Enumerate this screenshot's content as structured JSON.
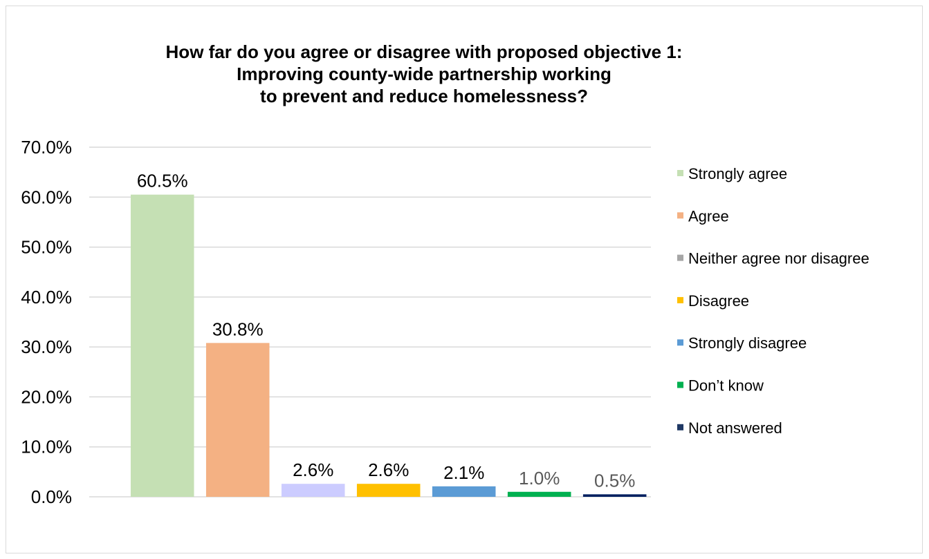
{
  "chart_data": {
    "type": "bar",
    "title_lines": [
      "How far do you agree or disagree with proposed objective 1:",
      "Improving county-wide partnership working",
      "to prevent and reduce homelessness?"
    ],
    "xlabel": "",
    "ylabel": "",
    "ylim": [
      0,
      70
    ],
    "yticks": [
      "0.0%",
      "10.0%",
      "20.0%",
      "30.0%",
      "40.0%",
      "50.0%",
      "60.0%",
      "70.0%"
    ],
    "grid": true,
    "legend_position": "right",
    "series": [
      {
        "name": "Strongly agree",
        "value": 60.5,
        "label": "60.5%",
        "color": "#c5e0b4",
        "legend_color": "#c5e0b4",
        "label_color": "#000000"
      },
      {
        "name": "Agree",
        "value": 30.8,
        "label": "30.8%",
        "color": "#f4b183",
        "legend_color": "#f4b183",
        "label_color": "#000000"
      },
      {
        "name": "Neither agree nor disagree",
        "value": 2.6,
        "label": "2.6%",
        "color": "#ccccff",
        "legend_color": "#a6a6a6",
        "label_color": "#000000"
      },
      {
        "name": "Disagree",
        "value": 2.6,
        "label": "2.6%",
        "color": "#ffc000",
        "legend_color": "#ffc000",
        "label_color": "#000000"
      },
      {
        "name": "Strongly disagree",
        "value": 2.1,
        "label": "2.1%",
        "color": "#5b9bd5",
        "legend_color": "#5b9bd5",
        "label_color": "#000000"
      },
      {
        "name": "Don’t know",
        "value": 1.0,
        "label": "1.0%",
        "color": "#00b050",
        "legend_color": "#00b050",
        "label_color": "#595959"
      },
      {
        "name": "Not answered",
        "value": 0.5,
        "label": "0.5%",
        "color": "#002060",
        "legend_color": "#1f3864",
        "label_color": "#595959"
      }
    ]
  }
}
